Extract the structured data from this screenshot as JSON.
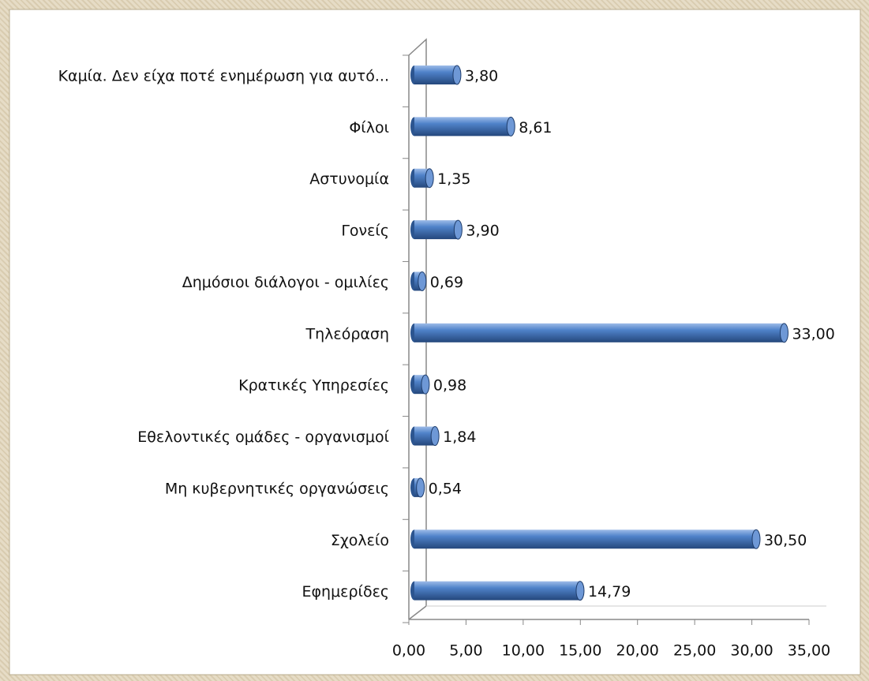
{
  "chart_data": {
    "type": "bar",
    "orientation": "horizontal",
    "categories": [
      "Καμία. Δεν είχα ποτέ ενημέρωση για αυτό...",
      "Φίλοι",
      "Αστυνομία",
      "Γονείς",
      "Δημόσιοι διάλογοι - ομιλίες",
      "Τηλεόραση",
      "Κρατικές Υπηρεσίες",
      "Εθελοντικές ομάδες - οργανισμοί",
      "Μη κυβερνητικές οργανώσεις",
      "Σχολείο",
      "Εφημερίδες"
    ],
    "values": [
      3.8,
      8.61,
      1.35,
      3.9,
      0.69,
      33.0,
      0.98,
      1.84,
      0.54,
      30.5,
      14.79
    ],
    "value_labels": [
      "3,80",
      "8,61",
      "1,35",
      "3,90",
      "0,69",
      "33,00",
      "0,98",
      "1,84",
      "0,54",
      "30,50",
      "14,79"
    ],
    "color": "#4a7cc4",
    "xlim": [
      0,
      35
    ],
    "xticks": [
      {
        "value": 0,
        "label": "0,00"
      },
      {
        "value": 5,
        "label": "5,00"
      },
      {
        "value": 10,
        "label": "10,00"
      },
      {
        "value": 15,
        "label": "15,00"
      },
      {
        "value": 20,
        "label": "20,00"
      },
      {
        "value": 25,
        "label": "25,00"
      },
      {
        "value": 30,
        "label": "30,00"
      },
      {
        "value": 35,
        "label": "35,00"
      }
    ],
    "grid": false
  }
}
